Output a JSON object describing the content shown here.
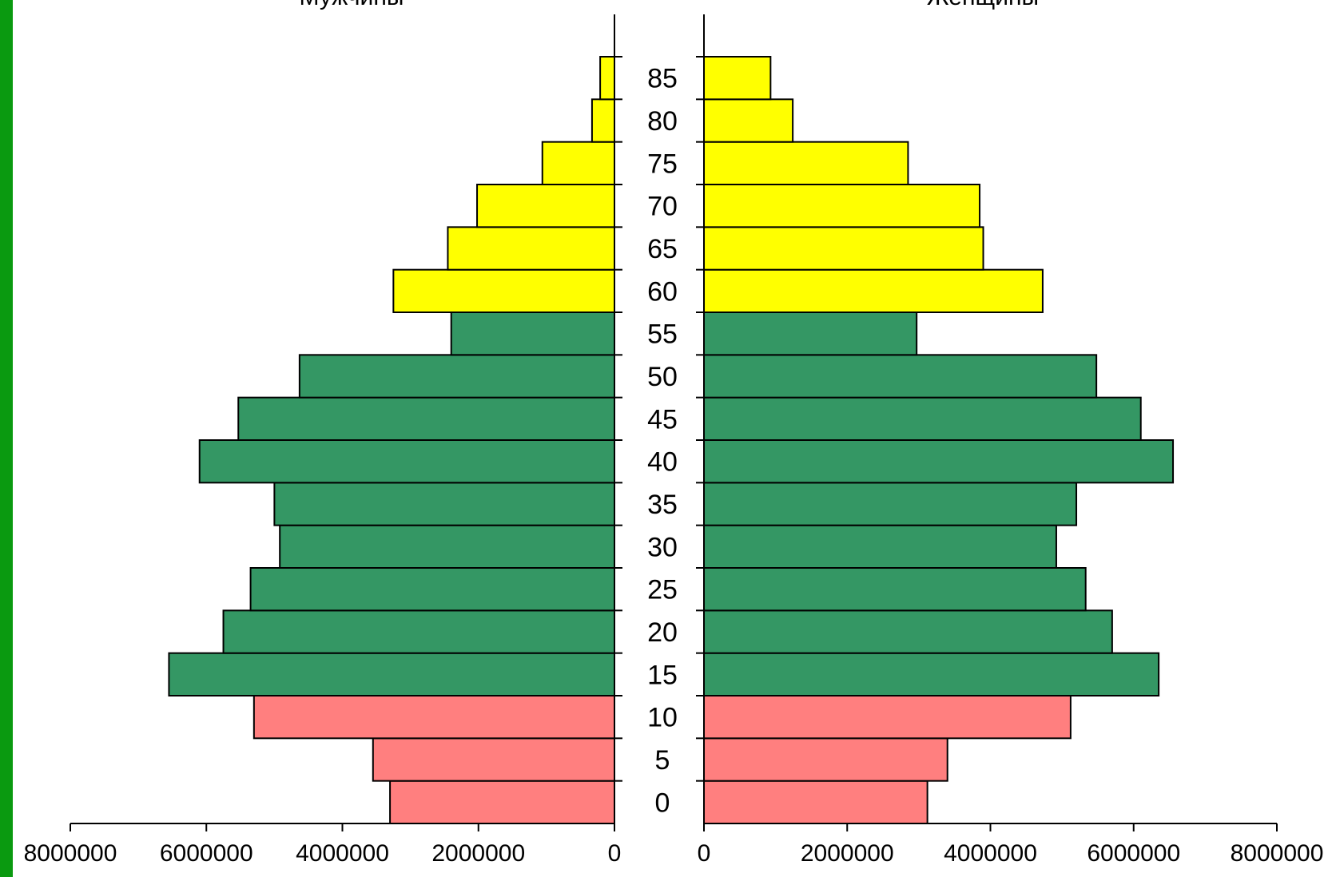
{
  "chart_data": {
    "type": "bar",
    "orientation": "horizontal",
    "title": "",
    "left_panel_title": "Мужчины",
    "right_panel_title": "Женщины",
    "categories": [
      "0",
      "5",
      "10",
      "15",
      "20",
      "25",
      "30",
      "35",
      "40",
      "45",
      "50",
      "55",
      "60",
      "65",
      "70",
      "75",
      "80",
      "85"
    ],
    "series": [
      {
        "name": "Мужчины",
        "values": [
          3300000,
          3550000,
          5300000,
          6550000,
          5750000,
          5350000,
          4920000,
          5000000,
          6100000,
          5530000,
          4630000,
          2400000,
          3250000,
          2450000,
          2020000,
          1060000,
          330000,
          210000
        ]
      },
      {
        "name": "Женщины",
        "values": [
          3120000,
          3400000,
          5120000,
          6350000,
          5700000,
          5330000,
          4920000,
          5200000,
          6550000,
          6100000,
          5480000,
          2970000,
          4730000,
          3900000,
          3850000,
          2850000,
          1240000,
          930000
        ]
      }
    ],
    "bar_groups": [
      "child",
      "child",
      "child",
      "adult",
      "adult",
      "adult",
      "adult",
      "adult",
      "adult",
      "adult",
      "adult",
      "adult",
      "elder",
      "elder",
      "elder",
      "elder",
      "elder",
      "elder"
    ],
    "xlim": [
      0,
      8000000
    ],
    "left_ticks": [
      "8000000",
      "6000000",
      "4000000",
      "2000000",
      "0"
    ],
    "right_ticks": [
      "0",
      "2000000",
      "4000000",
      "6000000",
      "8000000"
    ],
    "grid": false,
    "legend": "none"
  },
  "colors": {
    "accent": "#0a9a10",
    "child": "#ff7f7f",
    "adult": "#349764",
    "elder": "#ffff00",
    "outline": "#000000"
  }
}
